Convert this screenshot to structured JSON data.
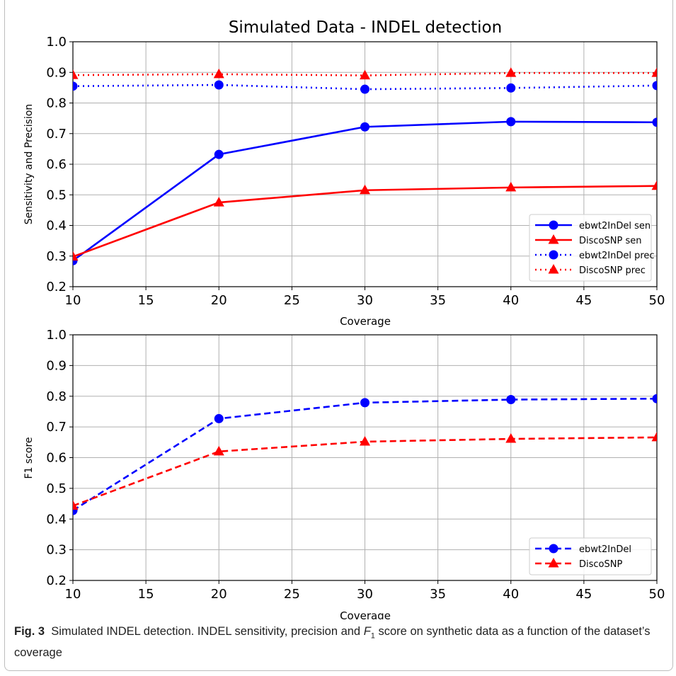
{
  "figure": {
    "caption_label": "Fig. 3",
    "caption_text_1": "Simulated INDEL detection. INDEL sensitivity, precision and ",
    "caption_F": "F",
    "caption_sub": "1",
    "caption_text_2": " score on synthetic data as a function of the dataset’s coverage"
  },
  "chart_data": [
    {
      "type": "line",
      "title": "Simulated Data - INDEL detection",
      "xlabel": "Coverage",
      "ylabel": "Sensitivity and Precision",
      "xlim": [
        10,
        50
      ],
      "ylim": [
        0.2,
        1.0
      ],
      "xticks": [
        "10",
        "15",
        "20",
        "25",
        "30",
        "35",
        "40",
        "45",
        "50"
      ],
      "yticks": [
        "0.2",
        "0.3",
        "0.4",
        "0.5",
        "0.6",
        "0.7",
        "0.8",
        "0.9",
        "1.0"
      ],
      "grid": true,
      "legend_position": "lower-right",
      "x": [
        10,
        20,
        30,
        40,
        50
      ],
      "series": [
        {
          "name": "ebwt2InDel sen",
          "values": [
            0.285,
            0.632,
            0.722,
            0.739,
            0.737
          ],
          "color": "#0000ff",
          "marker": "circle",
          "linestyle": "solid"
        },
        {
          "name": "DiscoSNP sen",
          "values": [
            0.298,
            0.475,
            0.515,
            0.524,
            0.529
          ],
          "color": "#ff0000",
          "marker": "triangle",
          "linestyle": "solid"
        },
        {
          "name": "ebwt2InDel prec",
          "values": [
            0.855,
            0.859,
            0.845,
            0.849,
            0.857
          ],
          "color": "#0000ff",
          "marker": "circle",
          "linestyle": "dotted"
        },
        {
          "name": "DiscoSNP prec",
          "values": [
            0.891,
            0.894,
            0.89,
            0.898,
            0.898
          ],
          "color": "#ff0000",
          "marker": "triangle",
          "linestyle": "dotted"
        }
      ]
    },
    {
      "type": "line",
      "title": "",
      "xlabel": "Coverage",
      "ylabel": "F1 score",
      "xlim": [
        10,
        50
      ],
      "ylim": [
        0.2,
        1.0
      ],
      "xticks": [
        "10",
        "15",
        "20",
        "25",
        "30",
        "35",
        "40",
        "45",
        "50"
      ],
      "yticks": [
        "0.2",
        "0.3",
        "0.4",
        "0.5",
        "0.6",
        "0.7",
        "0.8",
        "0.9",
        "1.0"
      ],
      "grid": true,
      "legend_position": "lower-right",
      "x": [
        10,
        20,
        30,
        40,
        50
      ],
      "series": [
        {
          "name": "ebwt2InDel",
          "values": [
            0.428,
            0.727,
            0.779,
            0.789,
            0.792
          ],
          "color": "#0000ff",
          "marker": "circle",
          "linestyle": "dashed"
        },
        {
          "name": "DiscoSNP",
          "values": [
            0.443,
            0.62,
            0.652,
            0.661,
            0.666
          ],
          "color": "#ff0000",
          "marker": "triangle",
          "linestyle": "dashed"
        }
      ]
    }
  ]
}
